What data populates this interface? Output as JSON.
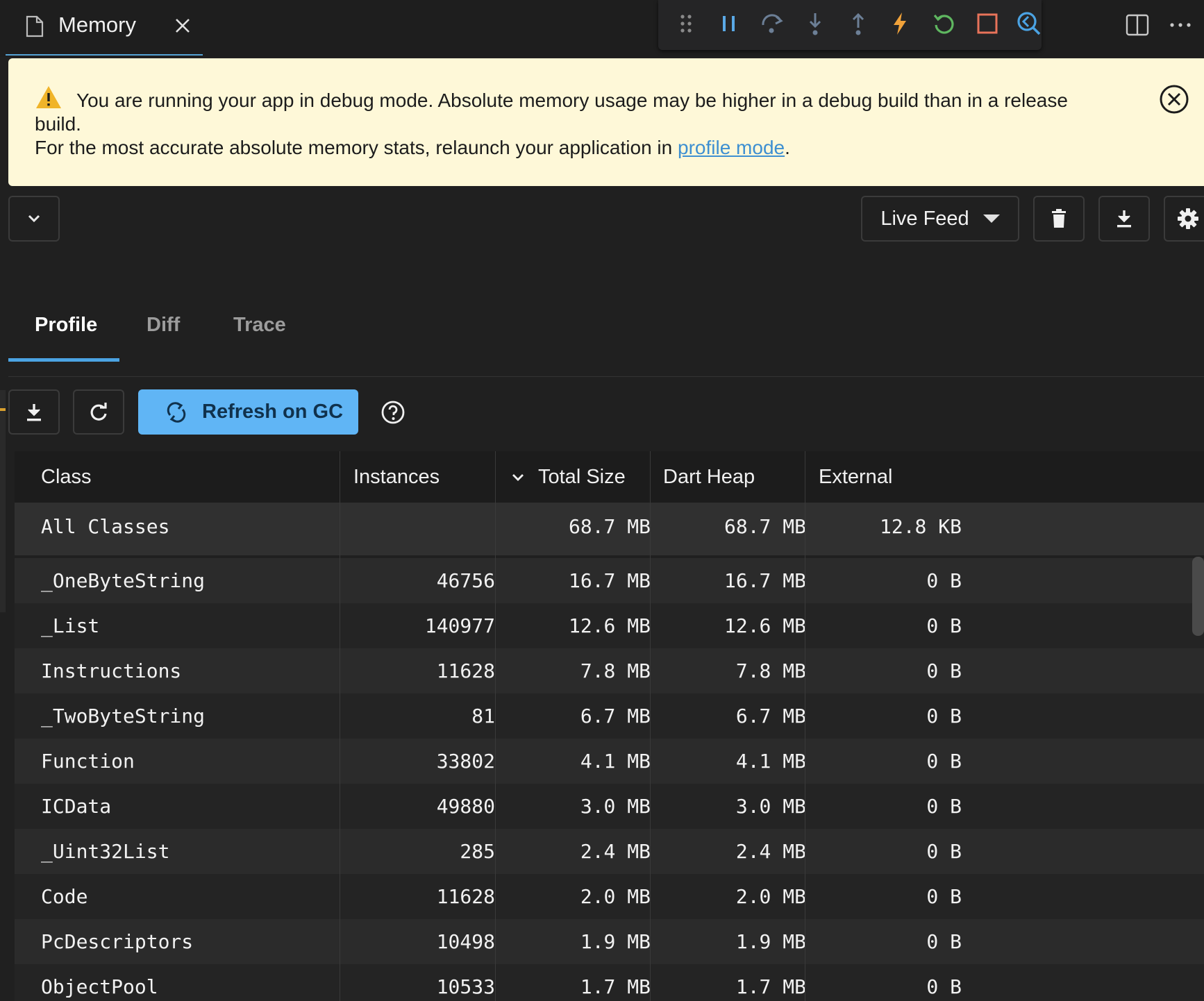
{
  "tab": {
    "title": "Memory"
  },
  "banner": {
    "message_line1": "You are running your app in debug mode. Absolute memory usage may be higher in a debug build than in a release build.",
    "message_line2_prefix": "For the most accurate absolute memory stats, relaunch your application in ",
    "link_text": "profile mode",
    "message_line2_suffix": "."
  },
  "controls": {
    "live_feed_label": "Live Feed"
  },
  "tabs": [
    {
      "label": "Profile"
    },
    {
      "label": "Diff"
    },
    {
      "label": "Trace"
    }
  ],
  "profile_toolbar": {
    "refresh_on_gc_label": "Refresh on GC"
  },
  "table": {
    "columns": [
      "Class",
      "Instances",
      "Total Size",
      "Dart Heap",
      "External"
    ],
    "summary": {
      "class": "All Classes",
      "instances": "",
      "total_size": "68.7 MB",
      "dart_heap": "68.7 MB",
      "external": "12.8 KB"
    },
    "rows": [
      {
        "class": "_OneByteString",
        "instances": "46756",
        "total_size": "16.7 MB",
        "dart_heap": "16.7 MB",
        "external": "0 B"
      },
      {
        "class": "_List",
        "instances": "140977",
        "total_size": "12.6 MB",
        "dart_heap": "12.6 MB",
        "external": "0 B"
      },
      {
        "class": "Instructions",
        "instances": "11628",
        "total_size": "7.8 MB",
        "dart_heap": "7.8 MB",
        "external": "0 B"
      },
      {
        "class": "_TwoByteString",
        "instances": "81",
        "total_size": "6.7 MB",
        "dart_heap": "6.7 MB",
        "external": "0 B"
      },
      {
        "class": "Function",
        "instances": "33802",
        "total_size": "4.1 MB",
        "dart_heap": "4.1 MB",
        "external": "0 B"
      },
      {
        "class": "ICData",
        "instances": "49880",
        "total_size": "3.0 MB",
        "dart_heap": "3.0 MB",
        "external": "0 B"
      },
      {
        "class": "_Uint32List",
        "instances": "285",
        "total_size": "2.4 MB",
        "dart_heap": "2.4 MB",
        "external": "0 B"
      },
      {
        "class": "Code",
        "instances": "11628",
        "total_size": "2.0 MB",
        "dart_heap": "2.0 MB",
        "external": "0 B"
      },
      {
        "class": "PcDescriptors",
        "instances": "10498",
        "total_size": "1.9 MB",
        "dart_heap": "1.9 MB",
        "external": "0 B"
      },
      {
        "class": "ObjectPool",
        "instances": "10533",
        "total_size": "1.7 MB",
        "dart_heap": "1.7 MB",
        "external": "0 B"
      }
    ]
  },
  "colors": {
    "background": "#202020",
    "banner_bg": "#fef8d8",
    "accent_blue": "#4ba3e3",
    "refresh_button": "#60b5f5",
    "warning_yellow": "#f0b429",
    "restart_green": "#5fb760",
    "stop_red": "#e8735a",
    "hot_reload_orange": "#f0a23a"
  }
}
